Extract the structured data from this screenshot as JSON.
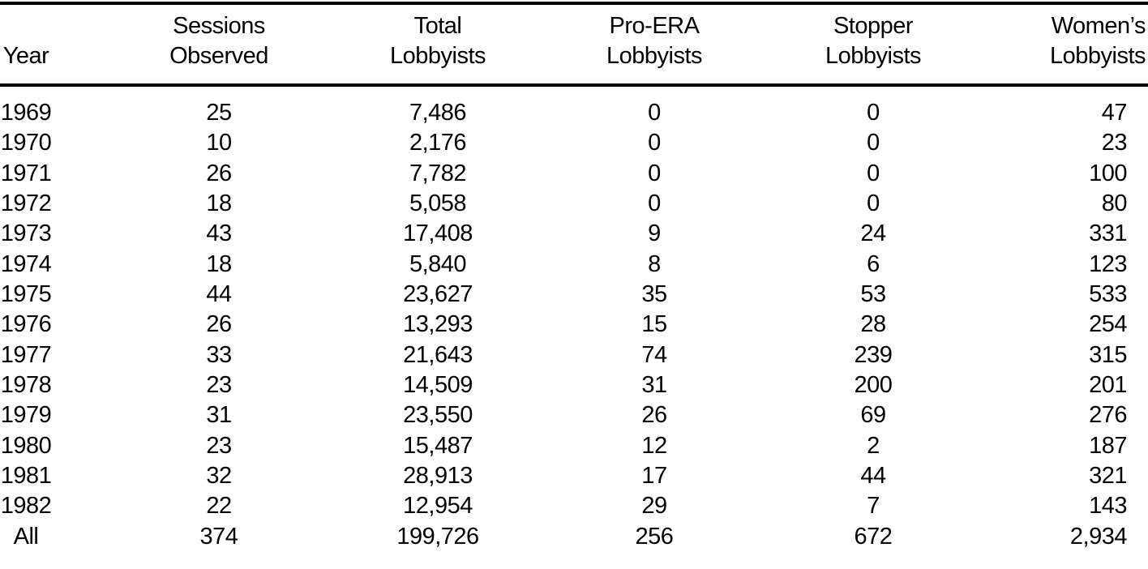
{
  "table": {
    "headers": [
      {
        "lines": [
          "Year"
        ]
      },
      {
        "lines": [
          "Sessions",
          "Observed"
        ]
      },
      {
        "lines": [
          "Total",
          "Lobbyists"
        ]
      },
      {
        "lines": [
          "Pro-ERA",
          "Lobbyists"
        ]
      },
      {
        "lines": [
          "Stopper",
          "Lobbyists"
        ]
      },
      {
        "lines": [
          "Women’s",
          "Lobbyists"
        ]
      }
    ],
    "rows": [
      [
        "1969",
        "25",
        "7,486",
        "0",
        "0",
        "47"
      ],
      [
        "1970",
        "10",
        "2,176",
        "0",
        "0",
        "23"
      ],
      [
        "1971",
        "26",
        "7,782",
        "0",
        "0",
        "100"
      ],
      [
        "1972",
        "18",
        "5,058",
        "0",
        "0",
        "80"
      ],
      [
        "1973",
        "43",
        "17,408",
        "9",
        "24",
        "331"
      ],
      [
        "1974",
        "18",
        "5,840",
        "8",
        "6",
        "123"
      ],
      [
        "1975",
        "44",
        "23,627",
        "35",
        "53",
        "533"
      ],
      [
        "1976",
        "26",
        "13,293",
        "15",
        "28",
        "254"
      ],
      [
        "1977",
        "33",
        "21,643",
        "74",
        "239",
        "315"
      ],
      [
        "1978",
        "23",
        "14,509",
        "31",
        "200",
        "201"
      ],
      [
        "1979",
        "31",
        "23,550",
        "26",
        "69",
        "276"
      ],
      [
        "1980",
        "23",
        "15,487",
        "12",
        "2",
        "187"
      ],
      [
        "1981",
        "32",
        "28,913",
        "17",
        "44",
        "321"
      ],
      [
        "1982",
        "22",
        "12,954",
        "29",
        "7",
        "143"
      ],
      [
        "All",
        "374",
        "199,726",
        "256",
        "672",
        "2,934"
      ]
    ],
    "colors": {
      "text": "#000000",
      "background": "#ffffff",
      "rule": "#000000"
    }
  },
  "chart_data": {
    "type": "table",
    "title": "",
    "columns": [
      "Year",
      "Sessions Observed",
      "Total Lobbyists",
      "Pro-ERA Lobbyists",
      "Stopper Lobbyists",
      "Women’s Lobbyists"
    ],
    "rows": [
      [
        1969,
        25,
        7486,
        0,
        0,
        47
      ],
      [
        1970,
        10,
        2176,
        0,
        0,
        23
      ],
      [
        1971,
        26,
        7782,
        0,
        0,
        100
      ],
      [
        1972,
        18,
        5058,
        0,
        0,
        80
      ],
      [
        1973,
        43,
        17408,
        9,
        24,
        331
      ],
      [
        1974,
        18,
        5840,
        8,
        6,
        123
      ],
      [
        1975,
        44,
        23627,
        35,
        53,
        533
      ],
      [
        1976,
        26,
        13293,
        15,
        28,
        254
      ],
      [
        1977,
        33,
        21643,
        74,
        239,
        315
      ],
      [
        1978,
        23,
        14509,
        31,
        200,
        201
      ],
      [
        1979,
        31,
        23550,
        26,
        69,
        276
      ],
      [
        1980,
        23,
        15487,
        12,
        2,
        187
      ],
      [
        1981,
        32,
        28913,
        17,
        44,
        321
      ],
      [
        1982,
        22,
        12954,
        29,
        7,
        143
      ],
      [
        "All",
        374,
        199726,
        256,
        672,
        2934
      ]
    ]
  }
}
